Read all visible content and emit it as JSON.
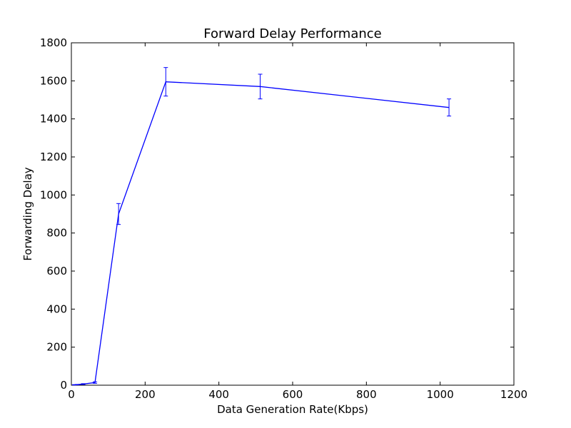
{
  "chart_data": {
    "type": "line",
    "title": "Forward Delay Performance",
    "xlabel": "Data Generation Rate(Kbps)",
    "ylabel": "Forwarding Delay",
    "xlim": [
      0,
      1200
    ],
    "ylim": [
      0,
      1800
    ],
    "x_ticks": [
      0,
      200,
      400,
      600,
      800,
      1000,
      1200
    ],
    "y_ticks": [
      0,
      200,
      400,
      600,
      800,
      1000,
      1200,
      1400,
      1600,
      1800
    ],
    "grid": false,
    "legend": "none",
    "series": [
      {
        "color": "#0000ff",
        "x": [
          8,
          16,
          32,
          64,
          128,
          256,
          512,
          1024
        ],
        "y": [
          2,
          3,
          6,
          14,
          900,
          1595,
          1570,
          1460
        ],
        "error": [
          1,
          1,
          2,
          4,
          55,
          75,
          65,
          45
        ]
      }
    ]
  }
}
